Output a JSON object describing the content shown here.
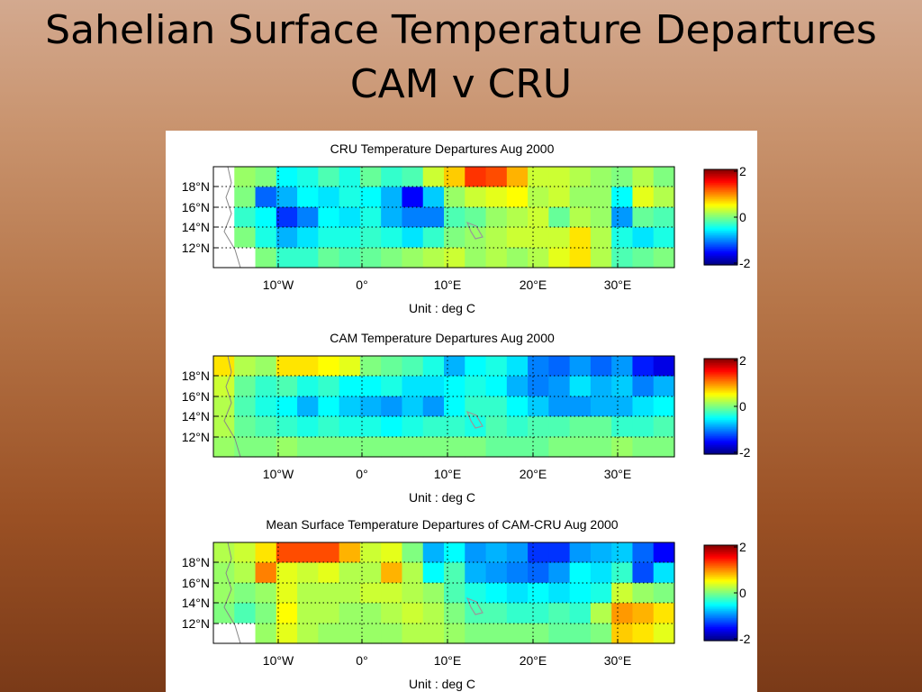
{
  "slide": {
    "title_line1": "Sahelian Surface Temperature Departures",
    "title_line2": "CAM v CRU"
  },
  "colormap": "jet",
  "chart_data": [
    {
      "type": "heatmap",
      "title": "CRU Temperature Departures  Aug 2000",
      "xlabel": "Unit : deg C",
      "x_ticks": [
        "10°W",
        "0°",
        "10°E",
        "20°E",
        "30°E"
      ],
      "y_ticks": [
        "18°N",
        "16°N",
        "14°N",
        "12°N"
      ],
      "colorbar_ticks": [
        "2",
        "0",
        "-2"
      ],
      "clim": [
        -2,
        2
      ],
      "grid": true,
      "values": [
        [
          null,
          0.1,
          0.0,
          -0.5,
          -0.4,
          -0.2,
          -0.4,
          -0.1,
          -0.3,
          -0.2,
          0.3,
          0.7,
          1.3,
          1.2,
          0.8,
          0.3,
          0.3,
          0.2,
          0.1,
          0.0,
          0.2,
          0.0
        ],
        [
          null,
          0.0,
          -1.1,
          -0.8,
          -0.5,
          -0.6,
          -0.4,
          -0.5,
          -0.8,
          -1.5,
          -0.7,
          0.1,
          0.3,
          0.4,
          0.5,
          0.2,
          0.3,
          0.1,
          0.1,
          -0.5,
          0.4,
          0.2
        ],
        [
          null,
          -0.3,
          -0.5,
          -1.3,
          -1.0,
          -0.5,
          -0.6,
          -0.4,
          -0.8,
          -1.0,
          -1.0,
          -0.2,
          -0.1,
          0.1,
          0.2,
          0.3,
          -0.1,
          0.2,
          0.1,
          -0.9,
          -0.1,
          -0.2
        ],
        [
          null,
          0.0,
          -0.4,
          -0.8,
          -0.6,
          -0.4,
          -0.4,
          -0.3,
          -0.4,
          -0.6,
          -0.3,
          0.0,
          0.1,
          0.2,
          0.3,
          0.3,
          0.3,
          0.6,
          0.2,
          -0.4,
          -0.6,
          -0.4
        ],
        [
          null,
          null,
          0.0,
          -0.3,
          -0.3,
          -0.1,
          -0.2,
          -0.1,
          0.0,
          0.1,
          0.2,
          0.3,
          0.1,
          0.2,
          0.1,
          0.2,
          0.4,
          0.6,
          0.2,
          -0.2,
          -0.1,
          0.0
        ]
      ]
    },
    {
      "type": "heatmap",
      "title": "CAM Temperature Departures  Aug 2000",
      "xlabel": "Unit : deg C",
      "x_ticks": [
        "10°W",
        "0°",
        "10°E",
        "20°E",
        "30°E"
      ],
      "y_ticks": [
        "18°N",
        "16°N",
        "14°N",
        "12°N"
      ],
      "colorbar_ticks": [
        "2",
        "0",
        "-2"
      ],
      "clim": [
        -2,
        2
      ],
      "grid": true,
      "values": [
        [
          0.6,
          0.2,
          0.1,
          0.6,
          0.6,
          0.5,
          0.4,
          0.0,
          -0.1,
          -0.2,
          -0.4,
          -0.8,
          -0.5,
          -0.4,
          -0.6,
          -1.0,
          -1.1,
          -0.9,
          -1.1,
          -0.9,
          -1.4,
          -1.6
        ],
        [
          0.3,
          -0.1,
          -0.3,
          -0.2,
          -0.4,
          -0.3,
          -0.5,
          -0.5,
          -0.4,
          -0.6,
          -0.6,
          -0.5,
          -0.4,
          -0.5,
          -0.8,
          -1.0,
          -0.9,
          -0.6,
          -0.8,
          -0.7,
          -1.0,
          -0.8
        ],
        [
          0.2,
          -0.2,
          -0.4,
          -0.5,
          -0.8,
          -0.5,
          -0.7,
          -0.8,
          -0.9,
          -0.7,
          -0.9,
          -0.5,
          -0.3,
          -0.3,
          -0.5,
          -0.7,
          -0.9,
          -0.9,
          -0.8,
          -0.8,
          -0.6,
          -0.5
        ],
        [
          0.2,
          -0.1,
          -0.2,
          -0.3,
          -0.4,
          -0.3,
          -0.4,
          -0.4,
          -0.5,
          -0.4,
          -0.3,
          -0.3,
          -0.4,
          -0.2,
          -0.3,
          -0.2,
          -0.2,
          -0.1,
          -0.1,
          -0.3,
          -0.3,
          -0.2
        ],
        [
          0.1,
          0.0,
          0.0,
          0.1,
          0.0,
          0.0,
          0.0,
          0.0,
          0.0,
          0.0,
          0.0,
          0.0,
          0.0,
          -0.1,
          -0.1,
          -0.1,
          0.0,
          0.0,
          0.0,
          0.1,
          0.0,
          0.0
        ]
      ]
    },
    {
      "type": "heatmap",
      "title": "Mean Surface Temperature Departures of CAM-CRU  Aug 2000",
      "xlabel": "Unit : deg C",
      "x_ticks": [
        "10°W",
        "0°",
        "10°E",
        "20°E",
        "30°E"
      ],
      "y_ticks": [
        "18°N",
        "16°N",
        "14°N",
        "12°N"
      ],
      "colorbar_ticks": [
        "2",
        "0",
        "-2"
      ],
      "clim": [
        -2,
        2
      ],
      "grid": true,
      "values": [
        [
          0.2,
          0.3,
          0.6,
          1.2,
          1.2,
          1.2,
          0.8,
          0.3,
          0.4,
          0.0,
          -0.8,
          -0.5,
          -0.9,
          -0.8,
          -0.9,
          -1.3,
          -1.3,
          -0.9,
          -0.8,
          -0.7,
          -1.1,
          -1.5
        ],
        [
          0.1,
          0.2,
          1.0,
          0.4,
          0.3,
          0.4,
          0.2,
          0.2,
          0.8,
          0.2,
          -0.5,
          -0.2,
          -0.8,
          -0.9,
          -1.0,
          -1.1,
          -0.9,
          -0.5,
          -0.6,
          -0.3,
          -1.2,
          -0.6
        ],
        [
          0.1,
          0.0,
          0.1,
          0.4,
          0.2,
          0.2,
          0.2,
          0.3,
          0.3,
          0.2,
          0.1,
          -0.2,
          -0.4,
          -0.5,
          -0.6,
          -0.5,
          -0.6,
          -0.5,
          -0.4,
          0.3,
          0.1,
          0.0
        ],
        [
          0.0,
          -0.2,
          0.0,
          0.5,
          0.2,
          0.2,
          0.1,
          0.1,
          0.2,
          0.3,
          0.2,
          0.0,
          -0.2,
          -0.2,
          -0.3,
          -0.3,
          -0.2,
          -0.3,
          0.2,
          0.9,
          0.8,
          0.6
        ],
        [
          null,
          null,
          0.1,
          0.4,
          0.2,
          0.1,
          0.1,
          0.1,
          0.1,
          0.2,
          0.2,
          0.1,
          0.0,
          0.0,
          0.0,
          0.0,
          -0.1,
          -0.1,
          0.0,
          0.7,
          0.6,
          0.4
        ]
      ]
    }
  ]
}
